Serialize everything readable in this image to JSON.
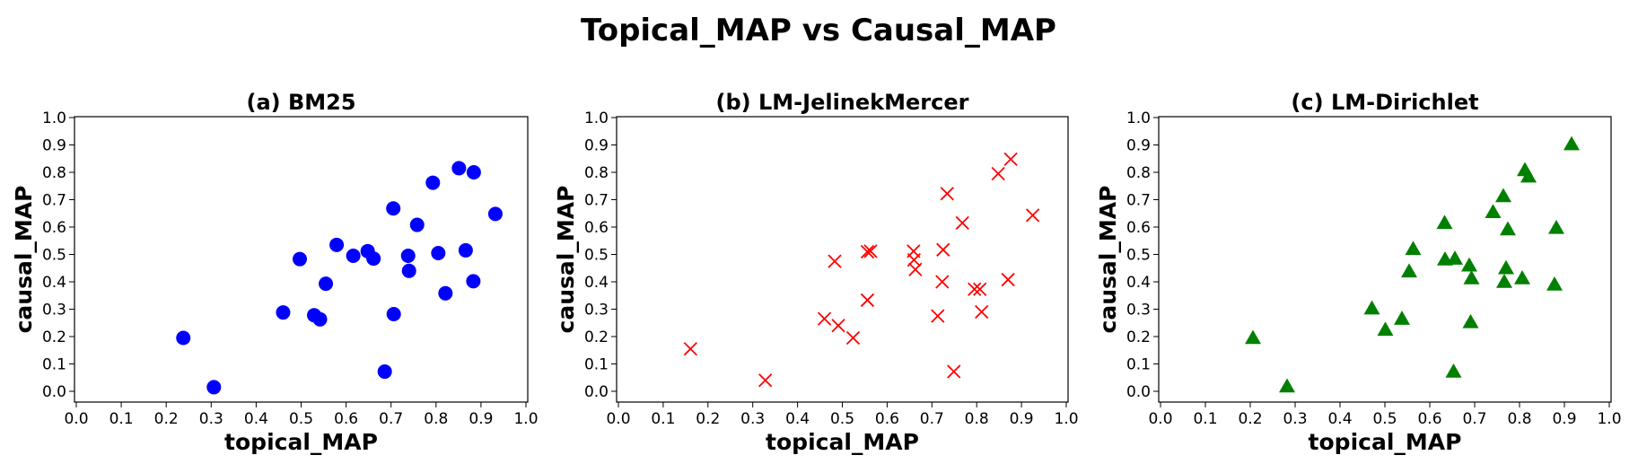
{
  "title": "Topical_MAP vs Causal_MAP",
  "chart_data": [
    {
      "type": "scatter",
      "title": "(a) BM25",
      "xlabel": "topical_MAP",
      "ylabel": "causal_MAP",
      "xlim": [
        0.0,
        1.0
      ],
      "ylim": [
        0.0,
        1.0
      ],
      "xticks": [
        "0.0",
        "0.1",
        "0.2",
        "0.3",
        "0.4",
        "0.5",
        "0.6",
        "0.7",
        "0.8",
        "0.9",
        "1.0"
      ],
      "yticks": [
        "0.0",
        "0.1",
        "0.2",
        "0.3",
        "0.4",
        "0.5",
        "0.6",
        "0.7",
        "0.8",
        "0.9",
        "1.0"
      ],
      "marker": "circle",
      "color": "#0000ff",
      "grid": false,
      "points": [
        [
          0.238,
          0.195
        ],
        [
          0.306,
          0.015
        ],
        [
          0.46,
          0.288
        ],
        [
          0.497,
          0.483
        ],
        [
          0.529,
          0.278
        ],
        [
          0.542,
          0.263
        ],
        [
          0.555,
          0.393
        ],
        [
          0.579,
          0.535
        ],
        [
          0.616,
          0.495
        ],
        [
          0.648,
          0.512
        ],
        [
          0.661,
          0.485
        ],
        [
          0.686,
          0.072
        ],
        [
          0.705,
          0.668
        ],
        [
          0.706,
          0.282
        ],
        [
          0.738,
          0.495
        ],
        [
          0.74,
          0.44
        ],
        [
          0.758,
          0.608
        ],
        [
          0.793,
          0.762
        ],
        [
          0.805,
          0.505
        ],
        [
          0.821,
          0.358
        ],
        [
          0.851,
          0.815
        ],
        [
          0.866,
          0.515
        ],
        [
          0.883,
          0.402
        ],
        [
          0.884,
          0.8
        ],
        [
          0.932,
          0.648
        ]
      ]
    },
    {
      "type": "scatter",
      "title": "(b) LM-JelinekMercer",
      "xlabel": "topical_MAP",
      "ylabel": "causal_MAP",
      "xlim": [
        0.0,
        1.0
      ],
      "ylim": [
        0.0,
        1.0
      ],
      "xticks": [
        "0.0",
        "0.1",
        "0.2",
        "0.3",
        "0.4",
        "0.5",
        "0.6",
        "0.7",
        "0.8",
        "0.9",
        "1.0"
      ],
      "yticks": [
        "0.0",
        "0.1",
        "0.2",
        "0.3",
        "0.4",
        "0.5",
        "0.6",
        "0.7",
        "0.8",
        "0.9",
        "1.0"
      ],
      "marker": "x",
      "color": "#ff0000",
      "grid": false,
      "points": [
        [
          0.161,
          0.155
        ],
        [
          0.328,
          0.04
        ],
        [
          0.46,
          0.265
        ],
        [
          0.483,
          0.475
        ],
        [
          0.491,
          0.24
        ],
        [
          0.524,
          0.195
        ],
        [
          0.556,
          0.333
        ],
        [
          0.556,
          0.51
        ],
        [
          0.563,
          0.512
        ],
        [
          0.659,
          0.512
        ],
        [
          0.66,
          0.48
        ],
        [
          0.663,
          0.445
        ],
        [
          0.713,
          0.275
        ],
        [
          0.723,
          0.4
        ],
        [
          0.725,
          0.517
        ],
        [
          0.734,
          0.722
        ],
        [
          0.749,
          0.072
        ],
        [
          0.768,
          0.615
        ],
        [
          0.795,
          0.373
        ],
        [
          0.807,
          0.373
        ],
        [
          0.811,
          0.29
        ],
        [
          0.848,
          0.795
        ],
        [
          0.87,
          0.408
        ],
        [
          0.876,
          0.848
        ],
        [
          0.925,
          0.643
        ]
      ]
    },
    {
      "type": "scatter",
      "title": "(c) LM-Dirichlet",
      "xlabel": "topical_MAP",
      "ylabel": "causal_MAP",
      "xlim": [
        0.0,
        1.0
      ],
      "ylim": [
        0.0,
        1.0
      ],
      "xticks": [
        "0.0",
        "0.1",
        "0.2",
        "0.3",
        "0.4",
        "0.5",
        "0.6",
        "0.7",
        "0.8",
        "0.9",
        "1.0"
      ],
      "yticks": [
        "0.0",
        "0.1",
        "0.2",
        "0.3",
        "0.4",
        "0.5",
        "0.6",
        "0.7",
        "0.8",
        "0.9",
        "1.0"
      ],
      "marker": "triangle",
      "color": "#008000",
      "grid": false,
      "points": [
        [
          0.206,
          0.195
        ],
        [
          0.282,
          0.018
        ],
        [
          0.471,
          0.303
        ],
        [
          0.501,
          0.225
        ],
        [
          0.538,
          0.265
        ],
        [
          0.554,
          0.438
        ],
        [
          0.563,
          0.52
        ],
        [
          0.633,
          0.615
        ],
        [
          0.634,
          0.482
        ],
        [
          0.653,
          0.072
        ],
        [
          0.656,
          0.485
        ],
        [
          0.688,
          0.46
        ],
        [
          0.691,
          0.253
        ],
        [
          0.693,
          0.413
        ],
        [
          0.741,
          0.655
        ],
        [
          0.764,
          0.713
        ],
        [
          0.766,
          0.4
        ],
        [
          0.77,
          0.45
        ],
        [
          0.774,
          0.592
        ],
        [
          0.806,
          0.413
        ],
        [
          0.812,
          0.808
        ],
        [
          0.82,
          0.785
        ],
        [
          0.878,
          0.39
        ],
        [
          0.882,
          0.597
        ],
        [
          0.916,
          0.903
        ]
      ]
    }
  ]
}
